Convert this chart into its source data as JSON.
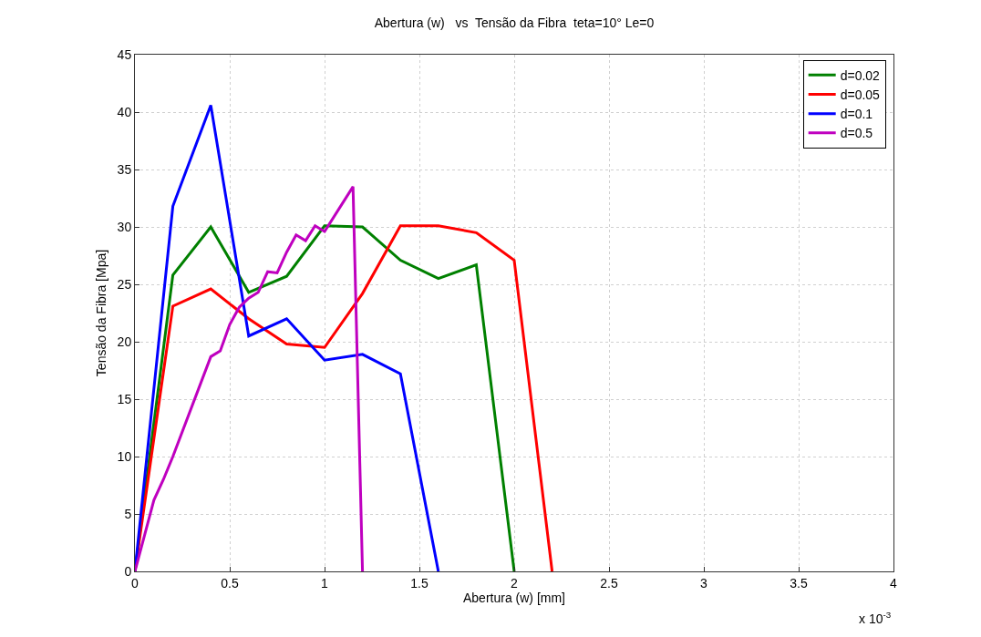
{
  "chart_data": {
    "type": "line",
    "title": "Abertura (w)   vs  Tensão da Fibra  teta=10° Le=0",
    "xlabel": "Abertura (w) [mm]",
    "ylabel": "Tensão da Fibra [Mpa]",
    "annotations": [
      "x 10$^{-3}$"
    ],
    "series": [
      {
        "name": "d=0.02",
        "color": "#008000",
        "x": [
          0,
          0.2,
          0.4,
          0.6,
          0.8,
          1.0,
          1.2,
          1.4,
          1.6,
          1.8,
          2.0
        ],
        "values": [
          0,
          25.8,
          30,
          24.3,
          25.7,
          30.1,
          30,
          27.1,
          25.5,
          26.7,
          0
        ]
      },
      {
        "name": "d=0.05",
        "color": "#ff0000",
        "x": [
          0,
          0.2,
          0.4,
          0.6,
          0.8,
          1.0,
          1.2,
          1.4,
          1.6,
          1.8,
          2.0,
          2.2
        ],
        "values": [
          0,
          23.1,
          24.6,
          22,
          19.8,
          19.5,
          24.2,
          30.1,
          30.1,
          29.5,
          27.1,
          0
        ]
      },
      {
        "name": "d=0.1",
        "color": "#0000ff",
        "x": [
          0,
          0.2,
          0.4,
          0.6,
          0.8,
          1.0,
          1.2,
          1.4,
          1.6
        ],
        "values": [
          0,
          31.8,
          40.6,
          20.5,
          22,
          18.4,
          18.9,
          17.2,
          0
        ]
      },
      {
        "name": "d=0.5",
        "color": "#bf00bf",
        "x": [
          0,
          0.1,
          0.15,
          0.2,
          0.4,
          0.45,
          0.5,
          0.55,
          0.6,
          0.65,
          0.7,
          0.75,
          0.8,
          0.85,
          0.9,
          0.95,
          1.0,
          1.15,
          1.2
        ],
        "values": [
          0,
          6.2,
          8,
          10,
          18.7,
          19.2,
          21.5,
          23,
          23.8,
          24.3,
          26.1,
          26,
          27.8,
          29.3,
          28.8,
          30.1,
          29.6,
          33.5,
          0
        ]
      }
    ],
    "xlim": [
      0,
      4
    ],
    "xticks": [
      0,
      0.5,
      1,
      1.5,
      2,
      2.5,
      3,
      3.5,
      4
    ],
    "ylim": [
      0,
      45
    ],
    "yticks": [
      0,
      5,
      10,
      15,
      20,
      25,
      30,
      35,
      40,
      45
    ],
    "grid": true,
    "legend": "top right",
    "line_style": "solid",
    "marker": "none"
  }
}
